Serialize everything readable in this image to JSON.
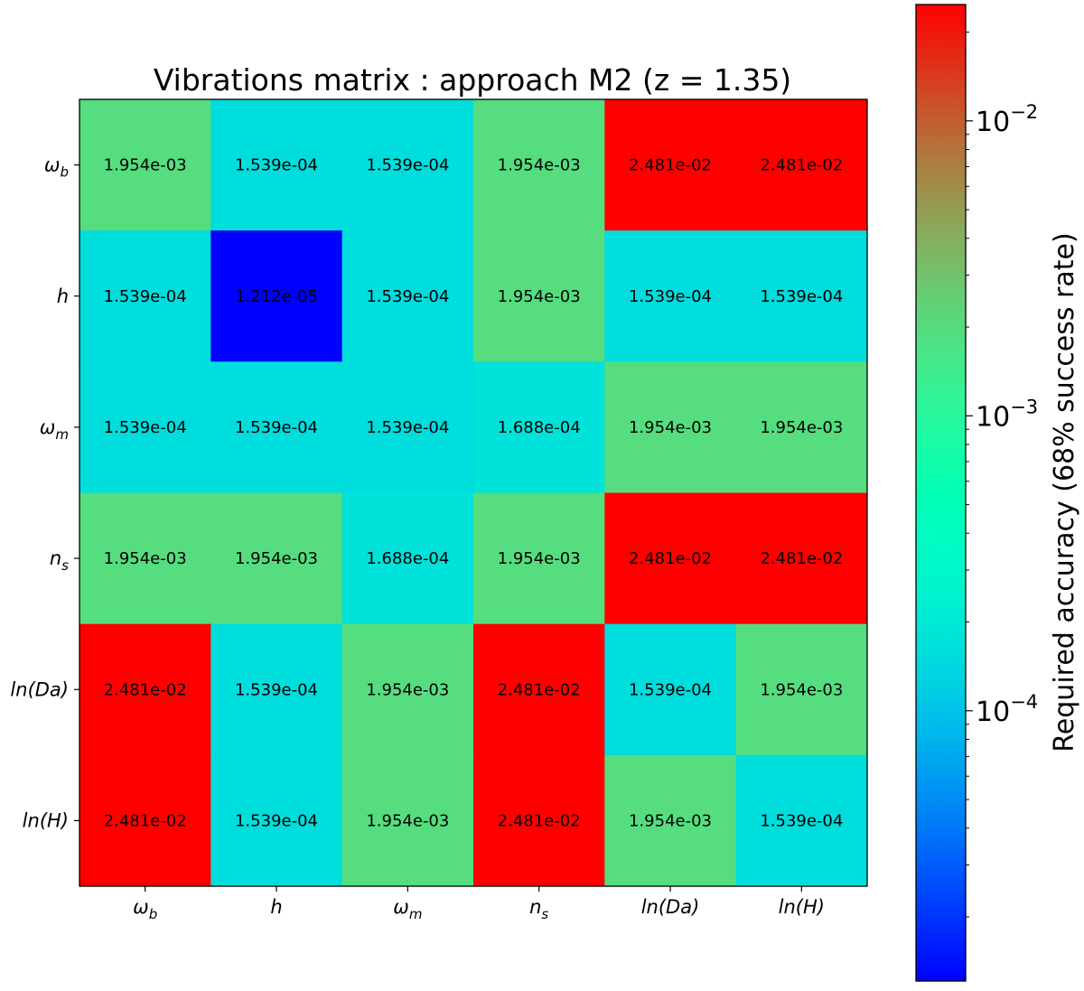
{
  "chart_data": {
    "type": "heatmap",
    "title": "Vibrations matrix : approach M2 (z = 1.35)",
    "x_labels": [
      "ω_b",
      "h",
      "ω_m",
      "n_s",
      "ln(Da)",
      "ln(H)"
    ],
    "y_labels": [
      "ω_b",
      "h",
      "ω_m",
      "n_s",
      "ln(Da)",
      "ln(H)"
    ],
    "values": [
      [
        "1.954e-03",
        "1.539e-04",
        "1.539e-04",
        "1.954e-03",
        "2.481e-02",
        "2.481e-02"
      ],
      [
        "1.539e-04",
        "1.212e-05",
        "1.539e-04",
        "1.954e-03",
        "1.539e-04",
        "1.539e-04"
      ],
      [
        "1.539e-04",
        "1.539e-04",
        "1.539e-04",
        "1.688e-04",
        "1.954e-03",
        "1.954e-03"
      ],
      [
        "1.954e-03",
        "1.954e-03",
        "1.688e-04",
        "1.954e-03",
        "2.481e-02",
        "2.481e-02"
      ],
      [
        "2.481e-02",
        "1.539e-04",
        "1.954e-03",
        "2.481e-02",
        "1.539e-04",
        "1.954e-03"
      ],
      [
        "2.481e-02",
        "1.539e-04",
        "1.954e-03",
        "2.481e-02",
        "1.954e-03",
        "1.539e-04"
      ]
    ],
    "colorbar": {
      "label": "Required accuracy (68% success rate)",
      "scale": "log",
      "colormap": "rainbow",
      "range": [
        1.212e-05,
        0.02481
      ],
      "ticks": [
        {
          "value": 0.0001,
          "label": "10",
          "exp": "−4"
        },
        {
          "value": 0.001,
          "label": "10",
          "exp": "−3"
        },
        {
          "value": 0.01,
          "label": "10",
          "exp": "−2"
        }
      ]
    }
  }
}
